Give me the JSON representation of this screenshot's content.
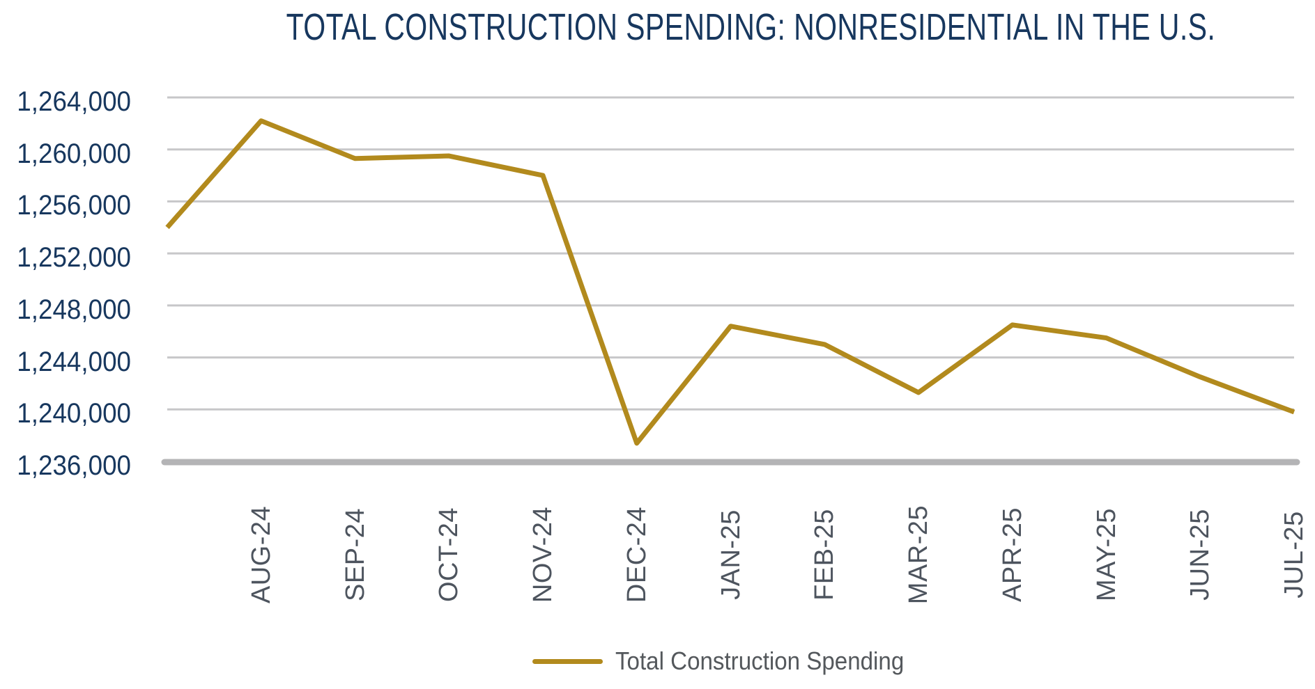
{
  "title": "TOTAL CONSTRUCTION SPENDING: NONRESIDENTIAL IN THE U.S.",
  "legend": {
    "label": "Total Construction Spending"
  },
  "colors": {
    "series_line": "#B28A1D",
    "title_text": "#17375E",
    "y_tick_text": "#17375E",
    "x_tick_text": "#4D545E",
    "legend_text": "#54585C",
    "gridline": "#C7C7C9",
    "axis_line": "#B4B4B6",
    "background": "#FFFFFF"
  },
  "chart_data": {
    "type": "line",
    "title": "TOTAL CONSTRUCTION SPENDING: NONRESIDENTIAL IN THE U.S.",
    "categories": [
      "",
      "AUG-24",
      "SEP-24",
      "OCT-24",
      "NOV-24",
      "DEC-24",
      "JAN-25",
      "FEB-25",
      "MAR-25",
      "APR-25",
      "MAY-25",
      "JUN-25",
      "JUL-25"
    ],
    "series": [
      {
        "name": "Total Construction Spending",
        "color": "#B28A1D",
        "values": [
          1254000,
          1262200,
          1259300,
          1259500,
          1258000,
          1237400,
          1246400,
          1245000,
          1241300,
          1246500,
          1245500,
          1242500,
          1239800
        ]
      }
    ],
    "xlabel": "",
    "ylabel": "",
    "ylim": [
      1236000,
      1264000
    ],
    "y_tick_step": 4000,
    "y_tick_labels": [
      "1,236,000",
      "1,240,000",
      "1,244,000",
      "1,248,000",
      "1,252,000",
      "1,256,000",
      "1,260,000",
      "1,264,000"
    ],
    "grid": "horizontal",
    "legend_position": "bottom"
  }
}
